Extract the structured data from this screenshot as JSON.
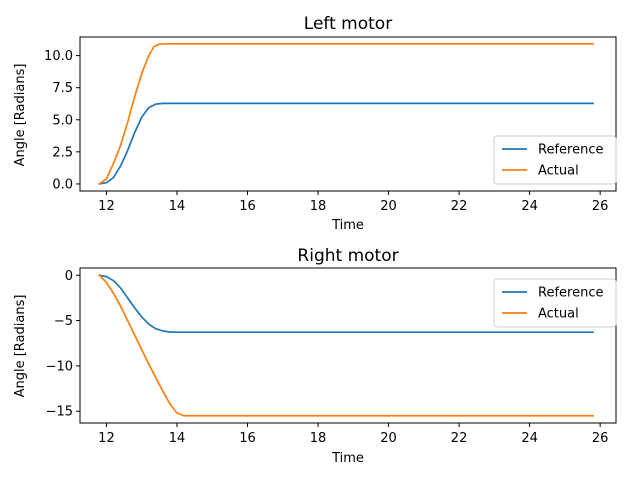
{
  "chart_data": [
    {
      "type": "line",
      "title": "Left motor",
      "xlabel": "Time",
      "ylabel": "Angle [Radians]",
      "xlim": [
        11.25,
        26.45
      ],
      "ylim": [
        -0.55,
        11.45
      ],
      "xticks": [
        12,
        14,
        16,
        18,
        20,
        22,
        24,
        26
      ],
      "yticks": [
        0.0,
        2.5,
        5.0,
        7.5,
        10.0
      ],
      "ytick_labels": [
        "0.0",
        "2.5",
        "5.0",
        "7.5",
        "10.0"
      ],
      "grid": false,
      "legend": "lower-right",
      "series": [
        {
          "name": "Reference",
          "color": "#1f77b4",
          "x": [
            11.8,
            12.0,
            12.2,
            12.4,
            12.6,
            12.8,
            13.0,
            13.2,
            13.4,
            13.6,
            14.0,
            16.0,
            18.0,
            20.0,
            22.0,
            24.0,
            25.8
          ],
          "y": [
            0.0,
            0.1,
            0.5,
            1.4,
            2.6,
            4.0,
            5.2,
            5.95,
            6.22,
            6.28,
            6.28,
            6.28,
            6.28,
            6.28,
            6.28,
            6.28,
            6.28
          ]
        },
        {
          "name": "Actual",
          "color": "#ff7f0e",
          "x": [
            11.8,
            12.0,
            12.2,
            12.4,
            12.6,
            12.8,
            13.0,
            13.2,
            13.35,
            13.5,
            13.7,
            14.0,
            16.0,
            18.0,
            20.0,
            22.0,
            24.0,
            25.8
          ],
          "y": [
            0.0,
            0.4,
            1.6,
            3.0,
            4.8,
            6.8,
            8.6,
            10.0,
            10.7,
            10.9,
            10.92,
            10.92,
            10.92,
            10.92,
            10.92,
            10.92,
            10.92,
            10.92
          ]
        }
      ]
    },
    {
      "type": "line",
      "title": "Right motor",
      "xlabel": "Time",
      "ylabel": "Angle [Radians]",
      "xlim": [
        11.25,
        26.45
      ],
      "ylim": [
        -16.3,
        0.8
      ],
      "xticks": [
        12,
        14,
        16,
        18,
        20,
        22,
        24,
        26
      ],
      "yticks": [
        0,
        -5,
        -10,
        -15
      ],
      "ytick_labels": [
        "0",
        "−5",
        "−10",
        "−15"
      ],
      "grid": false,
      "legend": "top-right",
      "series": [
        {
          "name": "Reference",
          "color": "#1f77b4",
          "x": [
            11.8,
            12.0,
            12.2,
            12.4,
            12.6,
            12.8,
            13.0,
            13.2,
            13.4,
            13.6,
            13.8,
            14.0,
            16.0,
            18.0,
            20.0,
            22.0,
            24.0,
            25.8
          ],
          "y": [
            0.0,
            -0.15,
            -0.6,
            -1.4,
            -2.5,
            -3.6,
            -4.6,
            -5.4,
            -5.9,
            -6.15,
            -6.26,
            -6.28,
            -6.28,
            -6.28,
            -6.28,
            -6.28,
            -6.28,
            -6.28
          ]
        },
        {
          "name": "Actual",
          "color": "#ff7f0e",
          "x": [
            11.8,
            12.0,
            12.2,
            12.4,
            12.6,
            12.8,
            13.0,
            13.2,
            13.4,
            13.6,
            13.8,
            14.0,
            14.2,
            14.4,
            16.0,
            18.0,
            20.0,
            22.0,
            24.0,
            25.8
          ],
          "y": [
            0.0,
            -0.8,
            -2.0,
            -3.4,
            -5.0,
            -6.6,
            -8.2,
            -9.8,
            -11.3,
            -12.8,
            -14.2,
            -15.2,
            -15.5,
            -15.5,
            -15.5,
            -15.5,
            -15.5,
            -15.5,
            -15.5,
            -15.5
          ]
        }
      ]
    }
  ]
}
